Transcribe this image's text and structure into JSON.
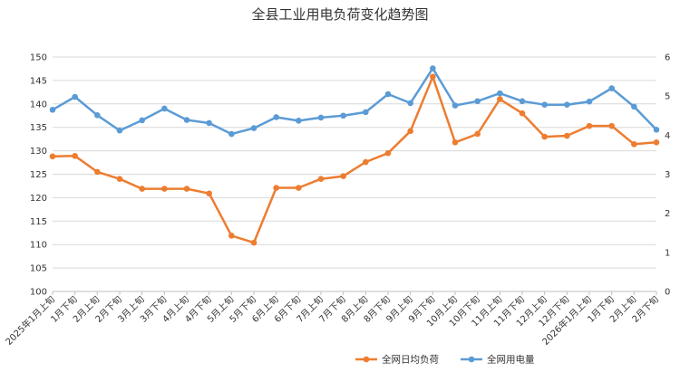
{
  "chart_data": {
    "type": "line",
    "title": "全县工业用电负荷变化趋势图",
    "categories": [
      "2025年1月上旬",
      "1月下旬",
      "2月上旬",
      "2月下旬",
      "3月上旬",
      "3月下旬",
      "4月上旬",
      "4月下旬",
      "5月上旬",
      "5月下旬",
      "6月上旬",
      "6月下旬",
      "7月上旬",
      "7月下旬",
      "8月上旬",
      "8月下旬",
      "9月上旬",
      "9月下旬",
      "10月上旬",
      "10月下旬",
      "11月上旬",
      "11月下旬",
      "12月上旬",
      "12月下旬",
      "2026年1月上旬",
      "1月下旬",
      "2月上旬",
      "2月下旬"
    ],
    "y_left": {
      "min": 100,
      "max": 150,
      "step": 5
    },
    "y_right": {
      "min": 0,
      "max": 6,
      "step": 1
    },
    "grid": true,
    "legend_position": "bottom-right",
    "series": [
      {
        "name": "全网日均负荷",
        "axis": "left",
        "color": "#ED7D31",
        "values": [
          128.8,
          128.9,
          125.5,
          124.0,
          121.9,
          121.9,
          121.9,
          120.9,
          111.9,
          110.4,
          122.1,
          122.1,
          124.0,
          124.6,
          127.6,
          129.5,
          134.2,
          145.8,
          131.8,
          133.6,
          141.0,
          138.0,
          133.0,
          133.2,
          135.3,
          135.3,
          131.4,
          131.8
        ]
      },
      {
        "name": "全网用电量",
        "axis": "right",
        "color": "#5B9BD5",
        "values": [
          4.65,
          4.98,
          4.51,
          4.12,
          4.38,
          4.68,
          4.39,
          4.31,
          4.03,
          4.18,
          4.46,
          4.37,
          4.45,
          4.5,
          4.59,
          5.05,
          4.82,
          5.71,
          4.76,
          4.87,
          5.07,
          4.87,
          4.78,
          4.78,
          4.86,
          5.2,
          4.73,
          4.14
        ]
      }
    ]
  }
}
